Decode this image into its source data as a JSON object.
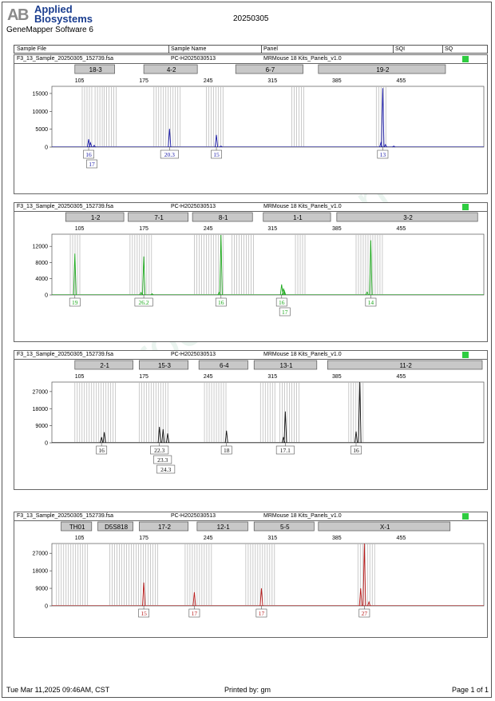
{
  "header": {
    "logo_line1": "Applied",
    "logo_line2": "Biosystems",
    "software": "GeneMapper Software 6",
    "report_title": "20250305",
    "columns": [
      "Sample File",
      "Sample Name",
      "Panel",
      "SQI",
      "SQ"
    ]
  },
  "watermark": "www.procell.com.cn",
  "footer": {
    "left": "Tue Mar 11,2025 09:46AM, CST",
    "center": "Printed by: gm",
    "right": "Page 1 of 1"
  },
  "colors": {
    "blue": "#1a1aa8",
    "green": "#1aa81a",
    "black": "#111111",
    "red": "#b81a1a",
    "status": "#2ecc40"
  },
  "chart_data": [
    {
      "type": "line",
      "sample_file": "F3_13_Sample_20250305_152739.fsa",
      "sample_name": "PC-H2025030513",
      "panel": "MRMouse 18 Kits_Panels_v1.0",
      "dye": "blue",
      "xlim": [
        75,
        545
      ],
      "x_ticks": [
        105,
        175,
        245,
        315,
        385,
        455
      ],
      "ylim": [
        0,
        17000
      ],
      "y_ticks": [
        0,
        5000,
        10000,
        15000
      ],
      "markers": [
        {
          "label": "18-3",
          "from": 100,
          "to": 145
        },
        {
          "label": "4-2",
          "from": 175,
          "to": 235
        },
        {
          "label": "6-7",
          "from": 275,
          "to": 350
        },
        {
          "label": "19-2",
          "from": 365,
          "to": 505
        }
      ],
      "bins": [
        [
          108,
          120
        ],
        [
          122,
          130
        ],
        [
          132,
          145
        ],
        [
          186,
          215
        ],
        [
          243,
          263
        ],
        [
          336,
          350
        ],
        [
          428,
          440
        ]
      ],
      "peaks": [
        {
          "x": 115,
          "h": 2200
        },
        {
          "x": 117,
          "h": 1200
        },
        {
          "x": 121,
          "h": 500
        },
        {
          "x": 203,
          "h": 5100
        },
        {
          "x": 254,
          "h": 3400
        },
        {
          "x": 259,
          "h": 300
        },
        {
          "x": 433,
          "h": 1200
        },
        {
          "x": 435,
          "h": 16500
        },
        {
          "x": 438,
          "h": 700
        },
        {
          "x": 447,
          "h": 300
        }
      ],
      "labels": [
        {
          "x": 115,
          "rows": [
            "16",
            "17"
          ]
        },
        {
          "x": 203,
          "rows": [
            "20.3"
          ]
        },
        {
          "x": 254,
          "rows": [
            "15"
          ]
        },
        {
          "x": 435,
          "rows": [
            "13"
          ]
        }
      ]
    },
    {
      "type": "line",
      "sample_file": "F3_13_Sample_20250305_152739.fsa",
      "sample_name": "PC-H2025030513",
      "panel": "MRMouse 18 Kits_Panels_v1.0",
      "dye": "green",
      "xlim": [
        75,
        545
      ],
      "x_ticks": [
        105,
        175,
        245,
        315,
        385,
        455
      ],
      "ylim": [
        0,
        15000
      ],
      "y_ticks": [
        0,
        4000,
        8000,
        12000
      ],
      "markers": [
        {
          "label": "1-2",
          "from": 90,
          "to": 155
        },
        {
          "label": "7-1",
          "from": 158,
          "to": 225
        },
        {
          "label": "8-1",
          "from": 228,
          "to": 295
        },
        {
          "label": "1-1",
          "from": 305,
          "to": 380
        },
        {
          "label": "3-2",
          "from": 385,
          "to": 540
        }
      ],
      "bins": [
        [
          95,
          106
        ],
        [
          160,
          185
        ],
        [
          230,
          262
        ],
        [
          271,
          296
        ],
        [
          340,
          352
        ],
        [
          406,
          436
        ]
      ],
      "peaks": [
        {
          "x": 100,
          "h": 10200
        },
        {
          "x": 172,
          "h": 600
        },
        {
          "x": 175,
          "h": 9500
        },
        {
          "x": 184,
          "h": 300
        },
        {
          "x": 257,
          "h": 600
        },
        {
          "x": 259,
          "h": 14800
        },
        {
          "x": 325,
          "h": 2600
        },
        {
          "x": 327,
          "h": 1600
        },
        {
          "x": 328,
          "h": 1000
        },
        {
          "x": 418,
          "h": 700
        },
        {
          "x": 422,
          "h": 13500
        }
      ],
      "labels": [
        {
          "x": 100,
          "rows": [
            "19"
          ]
        },
        {
          "x": 175,
          "rows": [
            "26.2"
          ]
        },
        {
          "x": 259,
          "rows": [
            "16"
          ]
        },
        {
          "x": 325,
          "rows": [
            "16",
            "17"
          ]
        },
        {
          "x": 422,
          "rows": [
            "14"
          ]
        }
      ]
    },
    {
      "type": "line",
      "sample_file": "F3_13_Sample_20250305_152739.fsa",
      "sample_name": "PC-H2025030513",
      "panel": "MRMouse 18 Kits_Panels_v1.0",
      "dye": "black",
      "xlim": [
        75,
        545
      ],
      "x_ticks": [
        105,
        175,
        245,
        315,
        385,
        455
      ],
      "ylim": [
        0,
        32000
      ],
      "y_ticks": [
        0,
        9000,
        18000,
        27000
      ],
      "markers": [
        {
          "label": "2-1",
          "from": 100,
          "to": 165
        },
        {
          "label": "15-3",
          "from": 170,
          "to": 225
        },
        {
          "label": "6-4",
          "from": 235,
          "to": 290
        },
        {
          "label": "13-1",
          "from": 295,
          "to": 365
        },
        {
          "label": "11-2",
          "from": 375,
          "to": 545
        }
      ],
      "bins": [
        [
          100,
          145
        ],
        [
          170,
          202
        ],
        [
          241,
          267
        ],
        [
          302,
          319
        ],
        [
          323,
          345
        ],
        [
          398,
          415
        ]
      ],
      "peaks": [
        {
          "x": 129,
          "h": 3000
        },
        {
          "x": 132,
          "h": 5600
        },
        {
          "x": 192,
          "h": 8400
        },
        {
          "x": 196,
          "h": 7200
        },
        {
          "x": 201,
          "h": 5000
        },
        {
          "x": 265,
          "h": 6400
        },
        {
          "x": 327,
          "h": 3000
        },
        {
          "x": 329,
          "h": 16500
        },
        {
          "x": 406,
          "h": 6000
        },
        {
          "x": 410,
          "h": 32000
        }
      ],
      "labels": [
        {
          "x": 129,
          "rows": [
            "16"
          ]
        },
        {
          "x": 192,
          "rows": [
            "22.3",
            "23.3",
            "24.3"
          ]
        },
        {
          "x": 265,
          "rows": [
            "18"
          ]
        },
        {
          "x": 329,
          "rows": [
            "17.1"
          ]
        },
        {
          "x": 406,
          "rows": [
            "16"
          ]
        }
      ]
    },
    {
      "type": "line",
      "sample_file": "F3_13_Sample_20250305_152739.fsa",
      "sample_name": "PC-H2025030513",
      "panel": "MRMouse 18 Kits_Panels_v1.0",
      "dye": "red",
      "xlim": [
        75,
        545
      ],
      "x_ticks": [
        105,
        175,
        245,
        315,
        385,
        455
      ],
      "ylim": [
        0,
        32000
      ],
      "y_ticks": [
        0,
        9000,
        18000,
        27000
      ],
      "markers": [
        {
          "label": "TH01",
          "from": 85,
          "to": 120
        },
        {
          "label": "D5S818",
          "from": 125,
          "to": 165
        },
        {
          "label": "17-2",
          "from": 170,
          "to": 225
        },
        {
          "label": "12-1",
          "from": 233,
          "to": 290
        },
        {
          "label": "5-5",
          "from": 295,
          "to": 362
        },
        {
          "label": "X-1",
          "from": 365,
          "to": 510
        }
      ],
      "bins": [
        [
          80,
          116
        ],
        [
          138,
          190
        ],
        [
          220,
          250
        ],
        [
          286,
          318
        ],
        [
          408,
          428
        ]
      ],
      "peaks": [
        {
          "x": 175,
          "h": 12000
        },
        {
          "x": 230,
          "h": 7000
        },
        {
          "x": 303,
          "h": 9000
        },
        {
          "x": 411,
          "h": 9000
        },
        {
          "x": 415,
          "h": 32000
        },
        {
          "x": 420,
          "h": 2000
        }
      ],
      "labels": [
        {
          "x": 175,
          "rows": [
            "15"
          ]
        },
        {
          "x": 230,
          "rows": [
            "17"
          ]
        },
        {
          "x": 303,
          "rows": [
            "17"
          ]
        },
        {
          "x": 415,
          "rows": [
            "27"
          ]
        }
      ]
    }
  ]
}
